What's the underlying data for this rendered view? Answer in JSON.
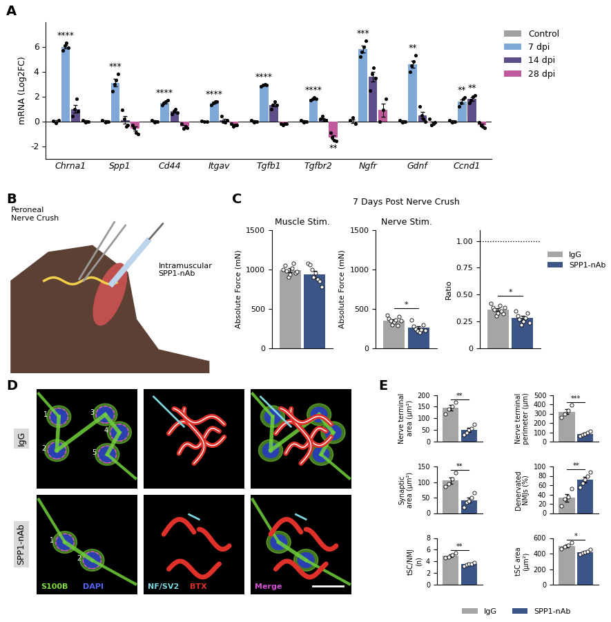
{
  "panel_labels": [
    "A",
    "B",
    "C",
    "D",
    "E"
  ],
  "panel_C_title": "7 Days Post Nerve Crush",
  "chart_data": [
    {
      "type": "bar",
      "y_label": "mRNA (Log2FC)",
      "categories": [
        "Chrna1",
        "Spp1",
        "Cd44",
        "Itgav",
        "Tgfb1",
        "Tgfbr2",
        "Ngfr",
        "Gdnf",
        "Ccnd1"
      ],
      "series": [
        {
          "name": "Control",
          "color": "#a0a0a0",
          "values": [
            0,
            0,
            0,
            0,
            0,
            0,
            0,
            0,
            0
          ],
          "errors": [
            0.06,
            0.06,
            0.06,
            0.03,
            0.06,
            0.06,
            0.14,
            0.06,
            0.06
          ],
          "points": [
            [
              0.05,
              -0.15,
              0.1
            ],
            [
              0.1,
              -0.1,
              0.0
            ],
            [
              0.1,
              -0.1,
              0.0
            ],
            [
              0.05,
              -0.05,
              0.0
            ],
            [
              0.1,
              -0.1,
              0.0
            ],
            [
              0.1,
              -0.1,
              0.0
            ],
            [
              0.1,
              0.3,
              -0.2
            ],
            [
              0.1,
              -0.1,
              0.0
            ],
            [
              0.1,
              -0.1,
              0.0
            ]
          ]
        },
        {
          "name": "7 dpi",
          "color": "#7fa8d8",
          "values": [
            6.0,
            3.1,
            1.5,
            1.5,
            2.9,
            1.8,
            5.8,
            4.6,
            1.6
          ],
          "errors": [
            0.13,
            0.29,
            0.08,
            0.08,
            0.04,
            0.04,
            0.28,
            0.27,
            0.16
          ],
          "points": [
            [
              5.7,
              6.1,
              6.3,
              5.9
            ],
            [
              2.4,
              3.0,
              3.3,
              3.8
            ],
            [
              1.3,
              1.5,
              1.6,
              1.7
            ],
            [
              1.3,
              1.5,
              1.6,
              1.6
            ],
            [
              2.8,
              2.9,
              3.0,
              2.9
            ],
            [
              1.7,
              1.8,
              1.9,
              1.8
            ],
            [
              5.2,
              5.6,
              6.0,
              6.5
            ],
            [
              4.0,
              4.5,
              4.8,
              5.3
            ],
            [
              1.2,
              1.5,
              1.8,
              1.9
            ]
          ]
        },
        {
          "name": "14 dpi",
          "color": "#5e4f8a",
          "values": [
            1.0,
            0.1,
            0.8,
            0.1,
            1.3,
            0.2,
            3.6,
            0.5,
            1.8
          ],
          "errors": [
            0.3,
            0.3,
            0.09,
            0.11,
            0.12,
            0.07,
            0.38,
            0.26,
            0.14
          ],
          "points": [
            [
              0.4,
              1.0,
              1.8,
              0.8
            ],
            [
              0.9,
              0.2,
              -0.4,
              -0.3
            ],
            [
              0.6,
              0.8,
              1.0,
              0.7
            ],
            [
              0.4,
              0.0,
              -0.1,
              0.1
            ],
            [
              1.0,
              1.3,
              1.6,
              1.3
            ],
            [
              0.2,
              0.4,
              0.1,
              0.1
            ],
            [
              2.5,
              3.8,
              4.3,
              3.5
            ],
            [
              1.2,
              0.5,
              0.2,
              0.0
            ],
            [
              1.5,
              1.7,
              2.0,
              2.1
            ]
          ]
        },
        {
          "name": "28 dpi",
          "color": "#c05a9c",
          "values": [
            0.0,
            -0.6,
            -0.4,
            -0.3,
            -0.2,
            -1.3,
            0.9,
            -0.1,
            -0.3
          ],
          "errors": [
            0.06,
            0.17,
            0.09,
            0.04,
            0.03,
            0.15,
            0.52,
            0.1,
            0.09
          ],
          "points": [
            [
              0.1,
              -0.1,
              0.0
            ],
            [
              -0.3,
              -0.5,
              -0.9,
              -1.0
            ],
            [
              -0.2,
              -0.6,
              -0.4,
              -0.5
            ],
            [
              -0.2,
              -0.4,
              -0.3,
              -0.3
            ],
            [
              -0.2,
              -0.3,
              -0.2,
              -0.2
            ],
            [
              -0.9,
              -1.3,
              -1.5,
              -1.6
            ],
            [
              0.0,
              0.9,
              1.8
            ],
            [
              0.2,
              -0.3,
              -0.2,
              -0.1
            ],
            [
              -0.1,
              -0.3,
              -0.4,
              -0.5
            ]
          ]
        }
      ],
      "ylim": [
        -3,
        8
      ],
      "yticks": [
        -2,
        0,
        2,
        4,
        6
      ],
      "legend": "upper left",
      "annotations": [
        {
          "text": "****",
          "category": "Chrna1",
          "series": "7 dpi"
        },
        {
          "text": "***",
          "category": "Spp1",
          "series": "7 dpi"
        },
        {
          "text": "****",
          "category": "Cd44",
          "series": "7 dpi"
        },
        {
          "text": "****",
          "category": "Itgav",
          "series": "7 dpi"
        },
        {
          "text": "****",
          "category": "Tgfb1",
          "series": "7 dpi"
        },
        {
          "text": "****",
          "category": "Tgfbr2",
          "series": "7 dpi"
        },
        {
          "text": "**",
          "category": "Tgfbr2",
          "series": "28 dpi"
        },
        {
          "text": "***",
          "category": "Ngfr",
          "series": "7 dpi"
        },
        {
          "text": "**",
          "category": "Gdnf",
          "series": "7 dpi"
        },
        {
          "text": "**",
          "category": "Ccnd1",
          "series": "7 dpi"
        },
        {
          "text": "**",
          "category": "Ccnd1",
          "series": "14 dpi"
        }
      ]
    },
    {
      "type": "bar",
      "title": "Muscle Stim.",
      "y_label": "Absolute Force (mN)",
      "categories": [
        null
      ],
      "series": [
        {
          "name": "IgG",
          "color": "#a5a5a5",
          "values": [
            990
          ],
          "errors": [
            25
          ],
          "points": [
            [
              1000,
              1050,
              980,
              900,
              940,
              1020,
              1080,
              960,
              970
            ]
          ]
        },
        {
          "name": "SPP1-nAb",
          "color": "#3b5587",
          "values": [
            940
          ],
          "errors": [
            45
          ],
          "points": [
            [
              1080,
              1060,
              1000,
              900,
              960,
              880,
              850,
              780
            ]
          ]
        }
      ],
      "ylim": [
        0,
        1500
      ],
      "yticks": [
        0,
        500,
        1000,
        1500
      ],
      "tick_labels": "y"
    },
    {
      "type": "bar",
      "title": "Nerve Stim.",
      "y_label": "Absolute Force (mN)",
      "categories": [
        null
      ],
      "series": [
        {
          "name": "IgG",
          "color": "#a5a5a5",
          "values": [
            350
          ],
          "errors": [
            15
          ],
          "points": [
            [
              420,
              380,
              350,
              300,
              330,
              360,
              290,
              400,
              350
            ]
          ]
        },
        {
          "name": "SPP1-nAb",
          "color": "#3b5587",
          "values": [
            260
          ],
          "errors": [
            18
          ],
          "points": [
            [
              360,
              280,
              250,
              220,
              200,
              240,
              300,
              230
            ]
          ]
        }
      ],
      "ylim": [
        0,
        1500
      ],
      "yticks": [
        0,
        500,
        1000,
        1500
      ],
      "tick_labels": "y",
      "annotations": [
        "*"
      ]
    },
    {
      "type": "bar",
      "y_label": "Ratio",
      "categories": [
        null
      ],
      "series": [
        {
          "name": "IgG",
          "color": "#a5a5a5",
          "values": [
            0.36
          ],
          "errors": [
            0.015
          ],
          "points": [
            [
              0.42,
              0.38,
              0.36,
              0.3,
              0.33,
              0.4,
              0.35,
              0.32,
              0.38
            ]
          ]
        },
        {
          "name": "SPP1-nAb",
          "color": "#3b5587",
          "values": [
            0.28
          ],
          "errors": [
            0.02
          ],
          "points": [
            [
              0.35,
              0.3,
              0.27,
              0.22,
              0.25,
              0.28,
              0.33,
              0.24
            ]
          ]
        }
      ],
      "ylim": [
        0,
        1.1
      ],
      "yticks": [
        0,
        0.25,
        {
          "value": 0.5,
          "label": "0.50"
        },
        0.75,
        {
          "value": 1.0,
          "label": "1.00"
        }
      ],
      "reference_line": 1.0,
      "tick_labels": "y",
      "annotations": [
        "*"
      ],
      "legend": "upper left"
    },
    {
      "type": "bar",
      "y_label": "Nerve terminal\narea (µm²)",
      "categories": [
        null
      ],
      "series": [
        {
          "name": "IgG",
          "color": "#a5a5a5",
          "values": [
            145
          ],
          "errors": [
            11
          ],
          "points": [
            [
              120,
              140,
              150,
              170
            ]
          ]
        },
        {
          "name": "SPP1-nAb",
          "color": "#3b5587",
          "values": [
            50
          ],
          "errors": [
            9
          ],
          "points": [
            [
              30,
              40,
              50,
              55,
              75
            ]
          ]
        }
      ],
      "ylim": [
        0,
        200
      ],
      "yticks": [
        0,
        50,
        100,
        150,
        200
      ],
      "tick_labels": "y",
      "annotations": [
        "**"
      ]
    },
    {
      "type": "bar",
      "y_label": "Nerve terminal\nperimeter (µm)",
      "categories": [
        null
      ],
      "series": [
        {
          "name": "IgG",
          "color": "#a5a5a5",
          "values": [
            320
          ],
          "errors": [
            27
          ],
          "points": [
            [
              260,
              300,
              330,
              390
            ]
          ]
        },
        {
          "name": "SPP1-nAb",
          "color": "#3b5587",
          "values": [
            85
          ],
          "errors": [
            9
          ],
          "points": [
            [
              60,
              75,
              85,
              95,
              110
            ]
          ]
        }
      ],
      "ylim": [
        0,
        500
      ],
      "yticks": [
        0,
        100,
        200,
        300,
        400,
        500
      ],
      "tick_labels": "y",
      "annotations": [
        "***"
      ]
    },
    {
      "type": "bar",
      "y_label": "Synaptic\narea (µm²)",
      "categories": [
        null
      ],
      "series": [
        {
          "name": "IgG",
          "color": "#a5a5a5",
          "values": [
            105
          ],
          "errors": [
            10
          ],
          "points": [
            [
              85,
              95,
              110,
              130
            ]
          ]
        },
        {
          "name": "SPP1-nAb",
          "color": "#3b5587",
          "values": [
            42
          ],
          "errors": [
            8
          ],
          "points": [
            [
              20,
              35,
              40,
              50,
              65
            ]
          ]
        }
      ],
      "ylim": [
        0,
        150
      ],
      "yticks": [
        0,
        50,
        100,
        150
      ],
      "tick_labels": "y",
      "annotations": [
        "**"
      ]
    },
    {
      "type": "bar",
      "y_label": "Denervated\nNMJs (%)",
      "categories": [
        null
      ],
      "series": [
        {
          "name": "IgG",
          "color": "#a5a5a5",
          "values": [
            33
          ],
          "errors": [
            8
          ],
          "points": [
            [
              15,
              30,
              35,
              52
            ]
          ]
        },
        {
          "name": "SPP1-nAb",
          "color": "#3b5587",
          "values": [
            72
          ],
          "errors": [
            6
          ],
          "points": [
            [
              55,
              65,
              72,
              80,
              88
            ]
          ]
        }
      ],
      "ylim": [
        0,
        100
      ],
      "yticks": [
        0,
        20,
        40,
        60,
        80,
        100
      ],
      "tick_labels": "y",
      "annotations": [
        "**"
      ]
    },
    {
      "type": "bar",
      "y_label": "tSC/NMJ\n(n)",
      "categories": [
        null
      ],
      "series": [
        {
          "name": "IgG",
          "color": "#a5a5a5",
          "values": [
            5.0
          ],
          "errors": [
            0.2
          ],
          "points": [
            [
              4.6,
              4.8,
              5.1,
              5.5
            ]
          ]
        },
        {
          "name": "SPP1-nAb",
          "color": "#3b5587",
          "values": [
            3.5
          ],
          "errors": [
            0.1
          ],
          "points": [
            [
              3.2,
              3.4,
              3.5,
              3.6,
              3.8
            ]
          ]
        }
      ],
      "ylim": [
        0,
        8
      ],
      "yticks": [
        0,
        2,
        4,
        6,
        8
      ],
      "tick_labels": "y",
      "annotations": [
        "**"
      ]
    },
    {
      "type": "bar",
      "y_label": "tSC area\n(µm²)",
      "categories": [
        null
      ],
      "series": [
        {
          "name": "IgG",
          "color": "#a5a5a5",
          "values": [
            500
          ],
          "errors": [
            17
          ],
          "points": [
            [
              460,
              490,
              510,
              540
            ]
          ]
        },
        {
          "name": "SPP1-nAb",
          "color": "#3b5587",
          "values": [
            420
          ],
          "errors": [
            11
          ],
          "points": [
            [
              390,
              410,
              420,
              430,
              450
            ]
          ]
        }
      ],
      "ylim": [
        0,
        600
      ],
      "yticks": [
        0,
        200,
        400,
        600
      ],
      "tick_labels": "y",
      "annotations": [
        "*"
      ],
      "legend": "lower center"
    }
  ],
  "illustration": {
    "labels": [
      "Peroneal\nNerve Crush",
      "Intramuscular\nSPP1-nAb"
    ]
  },
  "micrographs": {
    "rows": [
      "IgG",
      "SPP1-nAb"
    ],
    "channel_labels": [
      [
        {
          "text": "S100B",
          "color": "#7ddc3c"
        },
        {
          "text": "DAPI",
          "color": "#5068ff"
        }
      ],
      [
        {
          "text": "NF/SV2",
          "color": "#7fd6e0"
        },
        {
          "text": "BTX",
          "color": "#e0302a"
        }
      ],
      [
        {
          "text": "Merge",
          "color": "#d050d0"
        }
      ]
    ],
    "cell_numbers": [
      [
        1,
        2,
        3,
        4,
        5
      ],
      [
        1,
        2
      ]
    ]
  }
}
